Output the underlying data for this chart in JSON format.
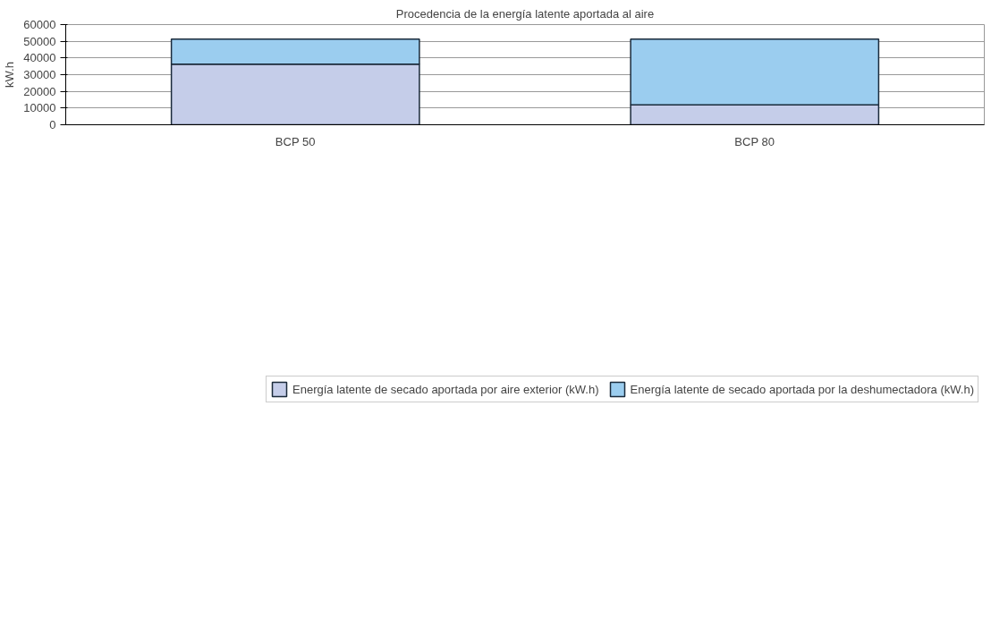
{
  "chart_data": {
    "type": "bar",
    "title": "Procedencia de la energía latente aportada al aire",
    "ylabel": "kW.h",
    "categories": [
      "BCP 50",
      "BCP 80"
    ],
    "stacked": true,
    "series": [
      {
        "name": "Energía latente de secado aportada por aire exterior (kW.h)",
        "color": "#c5cde9",
        "values": [
          36300,
          11900
        ]
      },
      {
        "name": "Energía latente de secado aportada por la deshumectadora (kW.h)",
        "color": "#9bcdef",
        "values": [
          15000,
          39400
        ]
      }
    ],
    "ylim": [
      0,
      60000
    ],
    "yticks": [
      0,
      10000,
      20000,
      30000,
      40000,
      50000,
      60000
    ],
    "grid": "y",
    "legend": "bottom"
  }
}
